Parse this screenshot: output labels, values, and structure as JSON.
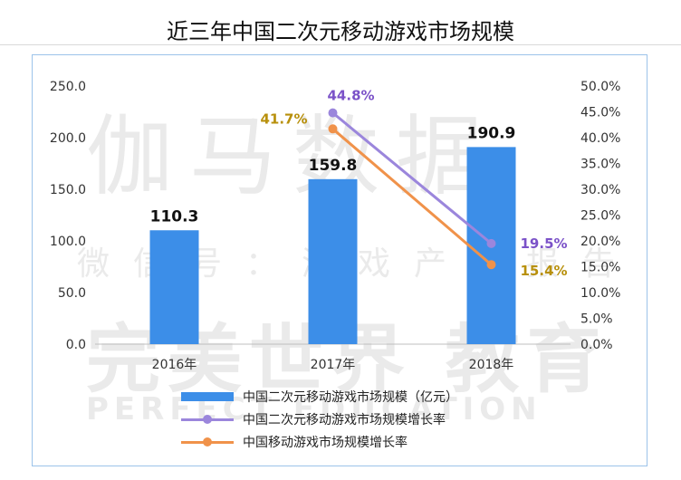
{
  "title": "近三年中国二次元移动游戏市场规模",
  "watermark": [
    "伽马数据",
    "微信号：游戏产业报告",
    "完美世界 教育",
    "PERFECT EDUCATION"
  ],
  "colors": {
    "bar": "#3c8ee8",
    "acg_growth": "#9b86dc",
    "mobile_growth": "#f0924a",
    "acg_label": "#7b52c8",
    "mobile_label": "#b8900c",
    "frame": "#9cc3ea"
  },
  "chart_data": {
    "type": "bar",
    "categories": [
      "2016年",
      "2017年",
      "2018年"
    ],
    "series": [
      {
        "name": "中国二次元移动游戏市场规模（亿元）",
        "type": "bar",
        "axis": "left",
        "values": [
          110.3,
          159.8,
          190.9
        ],
        "labels": [
          "110.3",
          "159.8",
          "190.9"
        ]
      },
      {
        "name": "中国二次元移动游戏市场规模增长率",
        "type": "line",
        "axis": "right",
        "values": [
          null,
          44.8,
          19.5
        ],
        "labels": [
          "",
          "44.8%",
          "19.5%"
        ]
      },
      {
        "name": "中国移动游戏市场规模增长率",
        "type": "line",
        "axis": "right",
        "values": [
          null,
          41.7,
          15.4
        ],
        "labels": [
          "",
          "41.7%",
          "15.4%"
        ]
      }
    ],
    "ylim_left": [
      0,
      250
    ],
    "yticks_left": [
      "0.0",
      "50.0",
      "100.0",
      "150.0",
      "200.0",
      "250.0"
    ],
    "ylim_right": [
      0,
      50
    ],
    "yticks_right": [
      "0.0%",
      "5.0%",
      "10.0%",
      "15.0%",
      "20.0%",
      "25.0%",
      "30.0%",
      "35.0%",
      "40.0%",
      "45.0%",
      "50.0%"
    ],
    "grid": false,
    "legend": "bottom"
  }
}
